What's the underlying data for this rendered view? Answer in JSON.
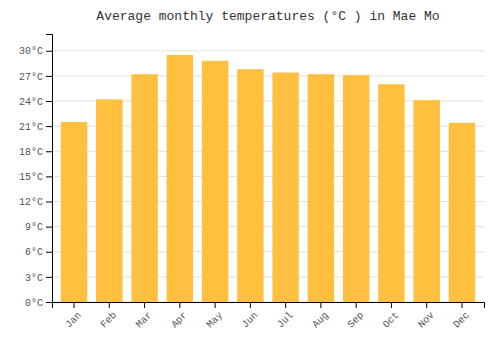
{
  "chart_data": {
    "type": "bar",
    "title": "Average monthly temperatures (°C ) in Mae Mo",
    "categories": [
      "Jan",
      "Feb",
      "Mar",
      "Apr",
      "May",
      "Jun",
      "Jul",
      "Aug",
      "Sep",
      "Oct",
      "Nov",
      "Dec"
    ],
    "values": [
      21.5,
      24.2,
      27.2,
      29.5,
      28.8,
      27.8,
      27.4,
      27.2,
      27.1,
      26.0,
      24.1,
      21.4
    ],
    "color": "#FFC040",
    "ylim": [
      0,
      32
    ],
    "yticks": [
      {
        "value": 0,
        "label": "0°C"
      },
      {
        "value": 3,
        "label": "3°C"
      },
      {
        "value": 6,
        "label": "6°C"
      },
      {
        "value": 9,
        "label": "9°C"
      },
      {
        "value": 12,
        "label": "12°C"
      },
      {
        "value": 15,
        "label": "15°C"
      },
      {
        "value": 18,
        "label": "18°C"
      },
      {
        "value": 21,
        "label": "21°C"
      },
      {
        "value": 24,
        "label": "24°C"
      },
      {
        "value": 27,
        "label": "27°C"
      },
      {
        "value": 30,
        "label": "30°C"
      }
    ],
    "grid": true
  }
}
